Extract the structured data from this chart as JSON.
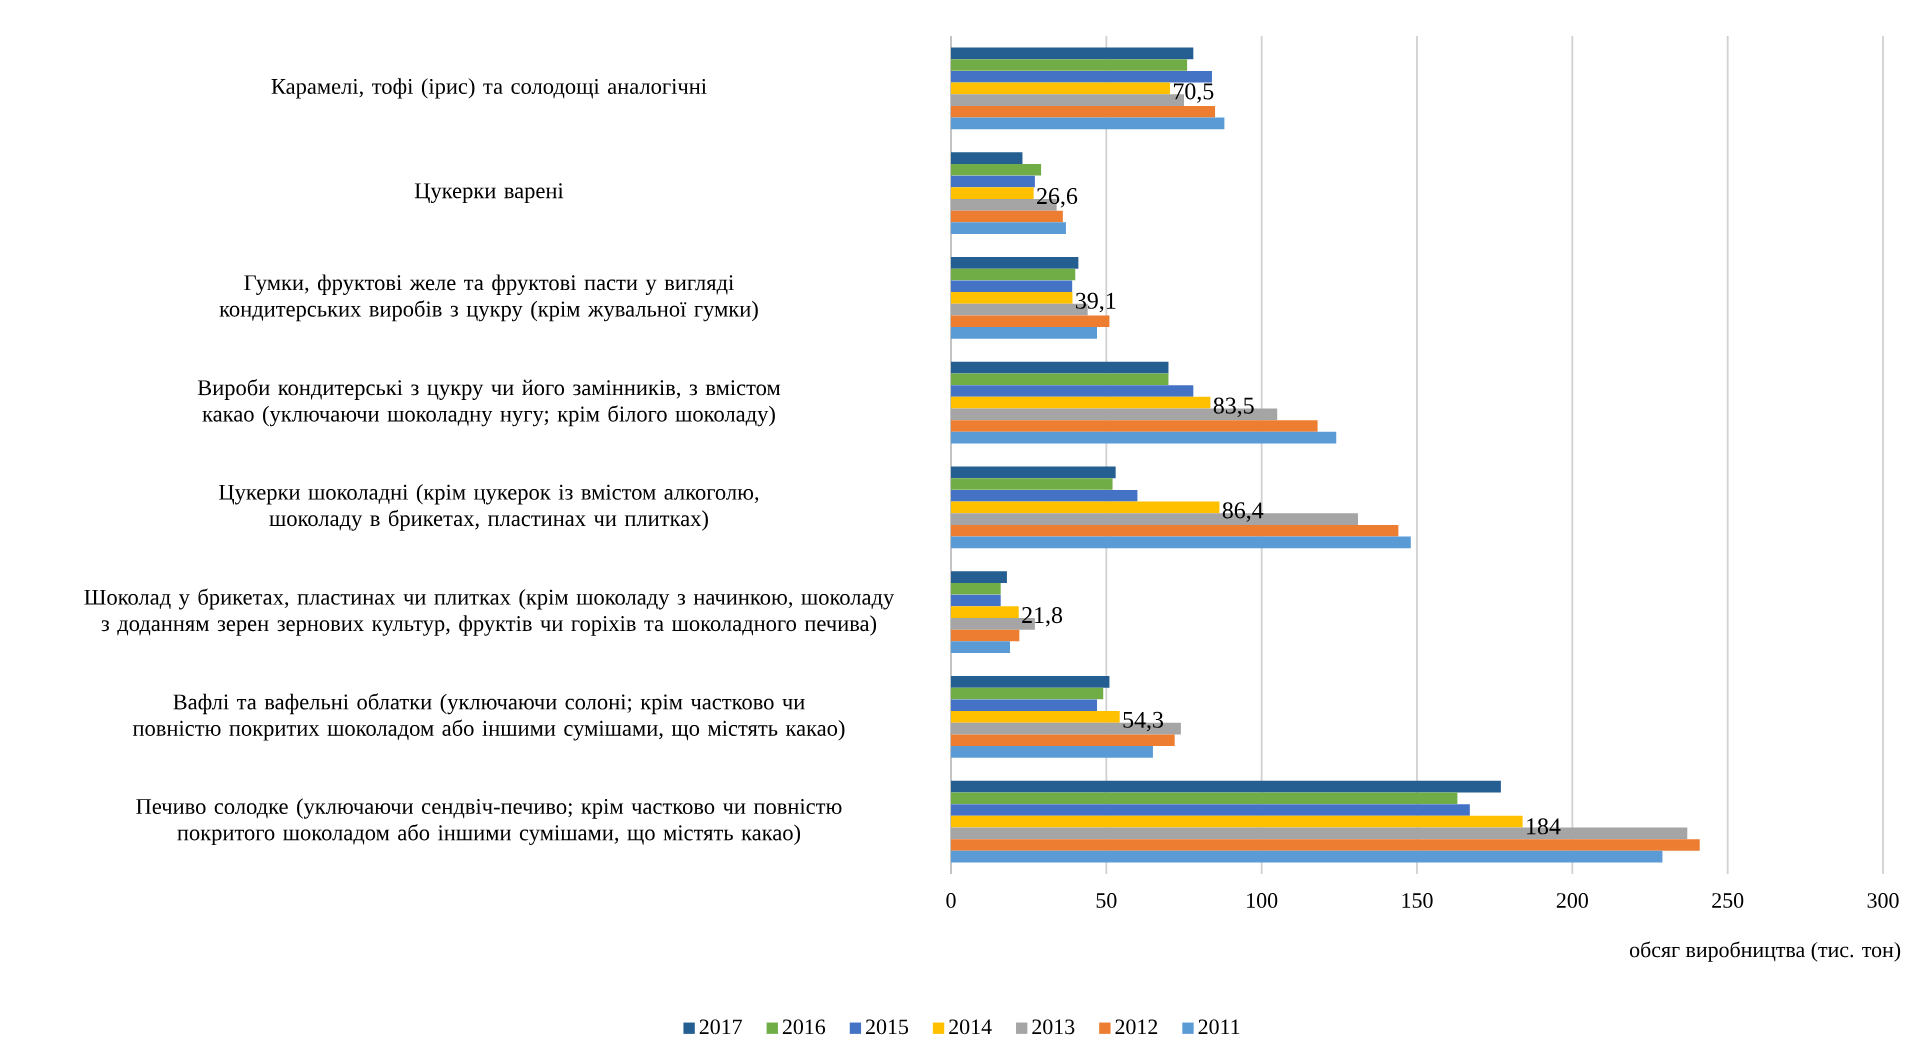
{
  "chart_data": {
    "type": "bar",
    "orientation": "horizontal",
    "categories": [
      "Карамелі, тофі (ірис) та солодощі аналогічні",
      "Цукерки варені",
      "Гумки, фруктові желе та фруктові пасти у вигляді кондитерських виробів з цукру (крім жувальної гумки)",
      "Вироби кондитерські з цукру чи його замінників, з вмістом какао (уключаючи шоколадну нугу; крім білого шоколаду)",
      "Цукерки шоколадні (крім цукерок із вмістом алкоголю, шоколаду в брикетах, пластинах чи плитках)",
      "Шоколад у брикетах, пластинах чи плитках (крім шоколаду з начинкою, шоколаду з доданням зерен зернових культур, фруктів чи горіхів та шоколадного печива)",
      "Вафлі та вафельні облатки (уключаючи солоні; крім частково чи повністю покритих шоколадом або іншими сумішами, що містять какао)",
      "Печиво солодке (уключаючи сендвіч-печиво; крім частково чи повністю покритого шоколадом або іншими сумішами, що містять какао)"
    ],
    "series": [
      {
        "name": "2017",
        "color": "#255e91",
        "values": [
          78,
          23,
          41,
          70,
          53,
          18,
          51,
          177
        ]
      },
      {
        "name": "2016",
        "color": "#70ad47",
        "values": [
          76,
          29,
          40,
          70,
          52,
          16,
          49,
          163
        ]
      },
      {
        "name": "2015",
        "color": "#4472c4",
        "values": [
          84,
          27,
          39,
          78,
          60,
          16,
          47,
          167
        ]
      },
      {
        "name": "2014",
        "color": "#ffc000",
        "values": [
          70.5,
          26.6,
          39.1,
          83.5,
          86.4,
          21.8,
          54.3,
          184
        ],
        "value_labels": [
          "70,5",
          "26,6",
          "39,1",
          "83,5",
          "86,4",
          "21,8",
          "54,3",
          "184"
        ]
      },
      {
        "name": "2013",
        "color": "#a5a5a5",
        "values": [
          75,
          34,
          44,
          105,
          131,
          27,
          74,
          237
        ]
      },
      {
        "name": "2012",
        "color": "#ed7d31",
        "values": [
          85,
          36,
          51,
          118,
          144,
          22,
          72,
          241
        ]
      },
      {
        "name": "2011",
        "color": "#5b9bd5",
        "values": [
          88,
          37,
          47,
          124,
          148,
          19,
          65,
          229
        ]
      }
    ],
    "xlim": [
      0,
      300
    ],
    "xticks": [
      0,
      50,
      100,
      150,
      200,
      250,
      300
    ],
    "xlabel": "обсяг виробництва (тис. тон)",
    "grid": "x",
    "legend": "bottom"
  }
}
